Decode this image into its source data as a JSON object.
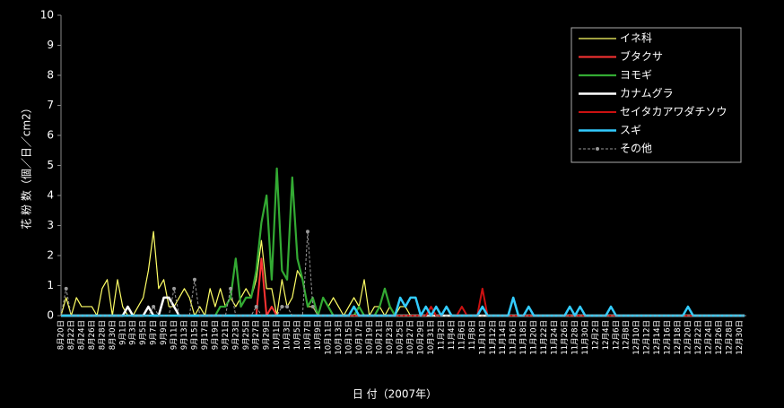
{
  "chart_data": {
    "type": "line",
    "xlabel": "日 付（2007年）",
    "ylabel": "花 粉 数（個／日／cm2）",
    "ylim": [
      0,
      10
    ],
    "yticks": [
      0,
      1,
      2,
      3,
      4,
      5,
      6,
      7,
      8,
      9,
      10
    ],
    "legend": "upper right",
    "categories": [
      "8月20日",
      null,
      "8月22日",
      null,
      "8月24日",
      null,
      "8月26日",
      null,
      "8月28日",
      null,
      "8月30日",
      null,
      "9月1日",
      null,
      "9月3日",
      null,
      "9月5日",
      null,
      "9月7日",
      null,
      "9月9日",
      null,
      "9月11日",
      null,
      "9月13日",
      null,
      "9月15日",
      null,
      "9月17日",
      null,
      "9月19日",
      null,
      "9月21日",
      null,
      "9月23日",
      null,
      "9月25日",
      null,
      "9月27日",
      null,
      "9月29日",
      null,
      "10月1日",
      null,
      "10月3日",
      null,
      "10月5日",
      null,
      "10月7日",
      null,
      "10月9日",
      null,
      "10月11日",
      null,
      "10月13日",
      null,
      "10月15日",
      null,
      "10月17日",
      null,
      "10月19日",
      null,
      "10月21日",
      null,
      "10月23日",
      null,
      "10月25日",
      null,
      "10月27日",
      null,
      "10月29日",
      null,
      "10月31日",
      null,
      "11月2日",
      null,
      "11月4日",
      null,
      "11月6日",
      null,
      "11月8日",
      null,
      "11月10日",
      null,
      "11月12日",
      null,
      "11月14日",
      null,
      "11月16日",
      null,
      "11月18日",
      null,
      "11月20日",
      null,
      "11月22日",
      null,
      "11月24日",
      null,
      "11月26日",
      null,
      "11月28日",
      null,
      "11月30日",
      null,
      "12月2日",
      null,
      "12月4日",
      null,
      "12月6日",
      null,
      "12月8日",
      null,
      "12月10日",
      null,
      "12月12日",
      null,
      "12月14日",
      null,
      "12月16日",
      null,
      "12月18日",
      null,
      "12月20日",
      null,
      "12月22日",
      null,
      "12月24日",
      null,
      "12月26日",
      null,
      "12月28日",
      null,
      "12月30日",
      null
    ],
    "series": [
      {
        "name": "イネ科",
        "color": "#ffff66",
        "width": 1.2,
        "linestyle": "solid",
        "values": [
          0,
          0.6,
          0,
          0.6,
          0.3,
          0.3,
          0.3,
          0,
          0.9,
          1.2,
          0,
          1.2,
          0.3,
          0,
          0,
          0.3,
          0.6,
          1.5,
          2.8,
          0.9,
          1.2,
          0.3,
          0.3,
          0.6,
          0.9,
          0.6,
          0,
          0.3,
          0,
          0.9,
          0.3,
          0.9,
          0.3,
          0.6,
          0.3,
          0.6,
          0.9,
          0.6,
          1.2,
          2.5,
          0.9,
          0.9,
          0,
          1.2,
          0.3,
          0.6,
          1.5,
          1.2,
          0.3,
          0.3,
          0,
          0.6,
          0.3,
          0.6,
          0.3,
          0,
          0.3,
          0.6,
          0.3,
          1.2,
          0,
          0.3,
          0.3,
          0,
          0.3,
          0,
          0.3,
          0.3,
          0,
          0,
          0,
          0,
          0,
          0,
          0,
          0,
          0,
          0,
          0,
          0,
          0,
          0,
          0,
          0,
          0,
          0,
          0,
          0,
          0,
          0,
          0,
          0,
          0,
          0,
          0,
          0,
          0,
          0,
          0,
          0,
          0,
          0,
          0,
          0,
          0,
          0,
          0,
          0,
          0,
          0,
          0,
          0,
          0,
          0,
          0,
          0,
          0,
          0,
          0,
          0,
          0,
          0,
          0,
          0,
          0,
          0,
          0,
          0,
          0,
          0,
          0,
          0,
          0,
          0
        ]
      },
      {
        "name": "ブタクサ",
        "color": "#ff3333",
        "width": 2,
        "linestyle": "solid",
        "values": [
          0,
          0,
          0,
          0,
          0,
          0,
          0,
          0,
          0,
          0,
          0,
          0,
          0,
          0,
          0,
          0,
          0,
          0,
          0,
          0,
          0,
          0,
          0,
          0,
          0,
          0,
          0,
          0,
          0,
          0,
          0,
          0,
          0,
          0,
          0,
          0,
          0,
          0,
          0,
          1.9,
          0,
          0.3,
          0,
          0,
          0,
          0,
          0,
          0,
          0,
          0,
          0,
          0,
          0,
          0,
          0,
          0,
          0,
          0,
          0,
          0,
          0,
          0,
          0,
          0,
          0,
          0,
          0,
          0,
          0,
          0,
          0,
          0,
          0,
          0,
          0,
          0,
          0,
          0,
          0,
          0,
          0,
          0,
          0,
          0,
          0,
          0,
          0,
          0,
          0,
          0,
          0,
          0,
          0,
          0,
          0,
          0,
          0,
          0,
          0,
          0,
          0,
          0,
          0,
          0,
          0,
          0,
          0,
          0,
          0,
          0,
          0,
          0,
          0,
          0,
          0,
          0,
          0,
          0,
          0,
          0,
          0,
          0,
          0,
          0,
          0,
          0,
          0,
          0,
          0,
          0,
          0,
          0,
          0,
          0
        ]
      },
      {
        "name": "ヨモギ",
        "color": "#33aa33",
        "width": 2.2,
        "linestyle": "solid",
        "values": [
          0,
          0,
          0,
          0,
          0,
          0,
          0,
          0,
          0,
          0,
          0,
          0,
          0,
          0,
          0,
          0,
          0,
          0,
          0,
          0,
          0,
          0,
          0,
          0,
          0,
          0,
          0,
          0,
          0,
          0,
          0,
          0.3,
          0.3,
          0.6,
          1.9,
          0.3,
          0.6,
          0.6,
          1.5,
          3.1,
          4.0,
          1.2,
          4.9,
          1.5,
          1.2,
          4.6,
          1.9,
          1.2,
          0.3,
          0.6,
          0,
          0.6,
          0.3,
          0,
          0,
          0,
          0,
          0,
          0.3,
          0,
          0,
          0,
          0.3,
          0.9,
          0.3,
          0,
          0,
          0,
          0,
          0,
          0,
          0,
          0,
          0,
          0,
          0,
          0,
          0,
          0,
          0,
          0,
          0,
          0,
          0,
          0,
          0,
          0,
          0,
          0,
          0,
          0,
          0,
          0,
          0,
          0,
          0,
          0,
          0,
          0,
          0,
          0,
          0,
          0,
          0,
          0,
          0,
          0,
          0,
          0,
          0,
          0,
          0,
          0,
          0,
          0,
          0,
          0,
          0,
          0,
          0,
          0,
          0,
          0,
          0,
          0,
          0,
          0,
          0,
          0,
          0,
          0,
          0,
          0,
          0
        ]
      },
      {
        "name": "カナムグラ",
        "color": "#ffffff",
        "width": 2.5,
        "linestyle": "solid",
        "values": [
          0,
          0,
          0,
          0,
          0,
          0,
          0,
          0,
          0,
          0,
          0,
          0,
          0,
          0.3,
          0,
          0,
          0,
          0.3,
          0,
          0,
          0.6,
          0.6,
          0.3,
          0,
          0,
          0,
          0,
          0,
          0,
          0,
          0,
          0,
          0,
          0,
          0,
          0,
          0,
          0,
          0,
          0,
          0,
          0,
          0,
          0,
          0,
          0,
          0,
          0,
          0,
          0,
          0,
          0,
          0,
          0,
          0,
          0,
          0,
          0,
          0,
          0,
          0,
          0,
          0,
          0,
          0,
          0,
          0,
          0,
          0,
          0,
          0,
          0,
          0,
          0,
          0,
          0,
          0,
          0,
          0,
          0,
          0,
          0,
          0,
          0,
          0,
          0,
          0,
          0,
          0,
          0,
          0,
          0,
          0,
          0,
          0,
          0,
          0,
          0,
          0,
          0,
          0,
          0,
          0,
          0,
          0,
          0,
          0,
          0,
          0,
          0,
          0,
          0,
          0,
          0,
          0,
          0,
          0,
          0,
          0,
          0,
          0,
          0,
          0,
          0,
          0,
          0,
          0,
          0,
          0,
          0,
          0,
          0,
          0,
          0
        ]
      },
      {
        "name": "セイタカアワダチソウ",
        "color": "#cc1111",
        "width": 2,
        "linestyle": "solid",
        "values": [
          0,
          0,
          0,
          0,
          0,
          0,
          0,
          0,
          0,
          0,
          0,
          0,
          0,
          0,
          0,
          0,
          0,
          0,
          0,
          0,
          0,
          0,
          0,
          0,
          0,
          0,
          0,
          0,
          0,
          0,
          0,
          0,
          0,
          0,
          0,
          0,
          0,
          0,
          0,
          0,
          0,
          0,
          0,
          0,
          0,
          0,
          0,
          0,
          0,
          0,
          0,
          0,
          0,
          0,
          0,
          0,
          0,
          0,
          0,
          0,
          0,
          0,
          0,
          0,
          0,
          0,
          0,
          0,
          0,
          0,
          0,
          0,
          0.3,
          0,
          0,
          0.3,
          0,
          0,
          0.3,
          0,
          0,
          0,
          0.9,
          0,
          0,
          0,
          0,
          0,
          0,
          0,
          0,
          0,
          0,
          0,
          0,
          0,
          0,
          0,
          0,
          0,
          0,
          0,
          0,
          0,
          0,
          0,
          0,
          0,
          0,
          0,
          0,
          0,
          0,
          0,
          0,
          0,
          0,
          0,
          0,
          0,
          0,
          0,
          0,
          0,
          0,
          0,
          0,
          0,
          0,
          0,
          0,
          0,
          0,
          0
        ]
      },
      {
        "name": "スギ",
        "color": "#33ccff",
        "width": 2.5,
        "linestyle": "solid",
        "values": [
          0,
          0,
          0,
          0,
          0,
          0,
          0,
          0,
          0,
          0,
          0,
          0,
          0,
          0,
          0,
          0,
          0,
          0,
          0,
          0,
          0,
          0,
          0,
          0,
          0,
          0,
          0,
          0,
          0,
          0,
          0,
          0,
          0,
          0,
          0,
          0,
          0,
          0,
          0,
          0,
          0,
          0,
          0,
          0,
          0,
          0,
          0,
          0,
          0,
          0,
          0,
          0,
          0,
          0,
          0,
          0,
          0,
          0.3,
          0,
          0,
          0,
          0,
          0,
          0,
          0,
          0,
          0.6,
          0.3,
          0.6,
          0.6,
          0,
          0.3,
          0,
          0.3,
          0,
          0.3,
          0,
          0,
          0,
          0,
          0,
          0,
          0.3,
          0,
          0,
          0,
          0,
          0,
          0.6,
          0,
          0,
          0.3,
          0,
          0,
          0,
          0,
          0,
          0,
          0,
          0.3,
          0,
          0.3,
          0,
          0,
          0,
          0,
          0,
          0.3,
          0,
          0,
          0,
          0,
          0,
          0,
          0,
          0,
          0,
          0,
          0,
          0,
          0,
          0,
          0.3,
          0,
          0,
          0,
          0,
          0,
          0,
          0,
          0,
          0,
          0,
          0
        ]
      },
      {
        "name": "その他",
        "color": "#999999",
        "width": 1,
        "linestyle": "dashed",
        "marker": true,
        "values": [
          0,
          0.9,
          0,
          0,
          0,
          0,
          0,
          0,
          0,
          0,
          0,
          0,
          0,
          0,
          0,
          0,
          0,
          0,
          0.3,
          0,
          0,
          0,
          0.9,
          0,
          0,
          0,
          1.2,
          0,
          0,
          0,
          0,
          0,
          0,
          0.9,
          0,
          0,
          0,
          0,
          0.3,
          0,
          0,
          0,
          0,
          0.3,
          0.3,
          0,
          0,
          0,
          2.8,
          0.3,
          0,
          0,
          0,
          0,
          0,
          0,
          0,
          0,
          0,
          0,
          0,
          0,
          0,
          0,
          0,
          0,
          0,
          0,
          0,
          0,
          0,
          0,
          0,
          0,
          0,
          0,
          0,
          0,
          0,
          0,
          0,
          0,
          0,
          0,
          0,
          0,
          0,
          0,
          0,
          0,
          0,
          0,
          0,
          0,
          0,
          0,
          0,
          0,
          0,
          0,
          0,
          0,
          0,
          0,
          0,
          0,
          0,
          0,
          0,
          0,
          0,
          0,
          0,
          0,
          0,
          0,
          0,
          0,
          0,
          0,
          0,
          0,
          0,
          0,
          0,
          0,
          0,
          0,
          0,
          0,
          0,
          0,
          0,
          0
        ]
      }
    ]
  }
}
